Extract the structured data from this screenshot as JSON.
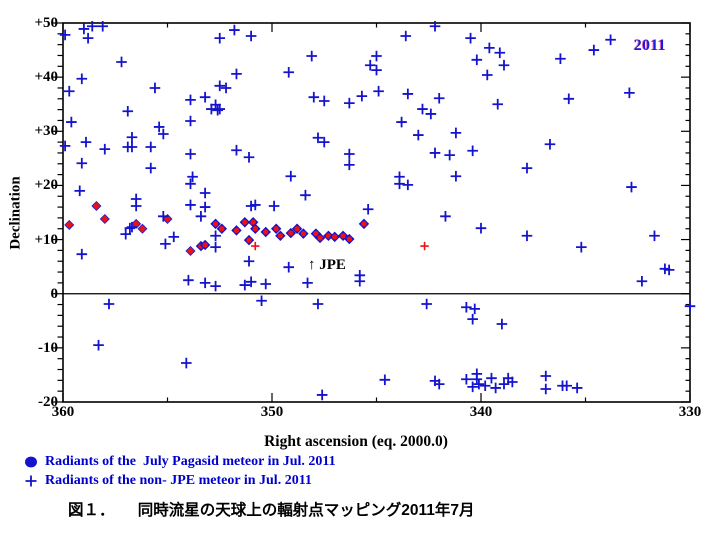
{
  "figure": {
    "year_label": "2011",
    "jpe_annotation": "↑ JPE",
    "caption": "図１．　　同時流星の天球上の輻射点マッピング2011年7月"
  },
  "legend": [
    {
      "marker": "filled-circle",
      "label": "Radiants of the  July Pagasid meteor in Jul. 2011"
    },
    {
      "marker": "plus",
      "label": "Radiants of the non- JPE meteor in Jul. 2011"
    }
  ],
  "colors": {
    "marker_blue": "#1414cc",
    "marker_red": "#ee1111",
    "legend_text": "#0000cc",
    "axis_black": "#000000",
    "year_blue": "#1a1ae0"
  },
  "chart_data": {
    "type": "scatter",
    "xlabel": "Right ascension (eq. 2000.0)",
    "ylabel": "Declination",
    "xlim": [
      360,
      330
    ],
    "ylim": [
      -20,
      50
    ],
    "x_axis_reversed": true,
    "x_major_ticks": [
      360,
      350,
      340,
      330
    ],
    "x_tick_labels": [
      "360",
      "350",
      "340",
      "330"
    ],
    "x_minor_step": 5,
    "y_major_ticks": [
      50,
      40,
      30,
      20,
      10,
      0,
      -10,
      -20
    ],
    "y_tick_labels": [
      "+50",
      "+40",
      "+30",
      "+20",
      "+10",
      "0",
      "-10",
      "-20"
    ],
    "y_minor_step": 2,
    "zero_line_dec": 0,
    "grid": false,
    "legend_position": "below-plot",
    "series": [
      {
        "name": "Radiants of the July Pagasid meteor in Jul. 2011",
        "marker": "diamond-red-core",
        "color": "#1414cc",
        "core_color": "#ee1111",
        "points": [
          [
            353.4,
            8.8
          ],
          [
            353.2,
            9.0
          ],
          [
            352.7,
            12.9
          ],
          [
            352.4,
            12.0
          ],
          [
            351.7,
            11.7
          ],
          [
            351.3,
            13.2
          ],
          [
            350.9,
            13.2
          ],
          [
            350.8,
            12.0
          ],
          [
            350.3,
            11.4
          ],
          [
            351.1,
            9.9
          ],
          [
            349.8,
            12.0
          ],
          [
            349.6,
            10.7
          ],
          [
            349.1,
            11.2
          ],
          [
            348.8,
            12.0
          ],
          [
            348.5,
            11.1
          ],
          [
            347.9,
            11.1
          ],
          [
            347.7,
            10.3
          ],
          [
            347.3,
            10.7
          ],
          [
            347.0,
            10.5
          ],
          [
            346.6,
            10.7
          ],
          [
            346.3,
            10.1
          ],
          [
            345.6,
            12.9
          ]
        ]
      },
      {
        "name": "JPE radiants (red-dominant markers)",
        "marker": "red-diamond",
        "color": "#ee1111",
        "edge_color": "#2222cc",
        "points": [
          [
            359.7,
            12.7
          ],
          [
            358.4,
            16.2
          ],
          [
            358.0,
            13.8
          ],
          [
            356.5,
            12.9
          ],
          [
            356.2,
            12.0
          ],
          [
            355.0,
            13.8
          ],
          [
            353.9,
            7.9
          ]
        ]
      },
      {
        "name": "small red plus marks",
        "marker": "red-plus",
        "color": "#ee1111",
        "points": [
          [
            350.8,
            8.8
          ],
          [
            342.7,
            8.8
          ]
        ]
      },
      {
        "name": "Radiants of the non- JPE meteor in Jul. 2011",
        "marker": "plus",
        "color": "#1414cc",
        "points": [
          [
            359.9,
            47.8
          ],
          [
            359.0,
            48.9
          ],
          [
            358.6,
            49.4
          ],
          [
            358.1,
            49.4
          ],
          [
            358.8,
            47.2
          ],
          [
            352.5,
            47.2
          ],
          [
            351.8,
            48.7
          ],
          [
            351.0,
            47.6
          ],
          [
            357.2,
            42.8
          ],
          [
            359.1,
            39.7
          ],
          [
            359.7,
            37.4
          ],
          [
            351.7,
            40.6
          ],
          [
            355.6,
            38.0
          ],
          [
            352.5,
            38.4
          ],
          [
            352.2,
            38.0
          ],
          [
            353.9,
            35.8
          ],
          [
            353.2,
            36.3
          ],
          [
            352.7,
            34.9
          ],
          [
            352.9,
            34.1
          ],
          [
            352.6,
            33.9
          ],
          [
            352.5,
            34.1
          ],
          [
            356.9,
            33.7
          ],
          [
            359.6,
            31.7
          ],
          [
            353.9,
            31.9
          ],
          [
            355.4,
            30.8
          ],
          [
            355.2,
            29.5
          ],
          [
            356.7,
            28.9
          ],
          [
            359.9,
            27.3
          ],
          [
            358.9,
            28.0
          ],
          [
            358.0,
            26.7
          ],
          [
            356.9,
            27.1
          ],
          [
            356.7,
            27.1
          ],
          [
            355.8,
            27.1
          ],
          [
            353.9,
            25.8
          ],
          [
            351.7,
            26.5
          ],
          [
            351.1,
            25.2
          ],
          [
            359.1,
            24.1
          ],
          [
            355.8,
            23.2
          ],
          [
            353.8,
            21.6
          ],
          [
            353.9,
            20.3
          ],
          [
            353.2,
            18.6
          ],
          [
            359.2,
            19.0
          ],
          [
            356.5,
            17.5
          ],
          [
            356.5,
            16.2
          ],
          [
            353.9,
            16.4
          ],
          [
            353.2,
            16.0
          ],
          [
            351.0,
            16.2
          ],
          [
            350.8,
            16.4
          ],
          [
            343.6,
            47.6
          ],
          [
            342.2,
            49.4
          ],
          [
            340.5,
            47.2
          ],
          [
            340.2,
            43.2
          ],
          [
            348.1,
            43.9
          ],
          [
            345.0,
            43.9
          ],
          [
            345.3,
            42.2
          ],
          [
            345.0,
            41.3
          ],
          [
            349.2,
            40.9
          ],
          [
            344.9,
            37.4
          ],
          [
            348.0,
            36.3
          ],
          [
            347.5,
            35.6
          ],
          [
            345.7,
            36.5
          ],
          [
            346.3,
            35.2
          ],
          [
            343.5,
            36.9
          ],
          [
            342.0,
            36.1
          ],
          [
            342.8,
            34.1
          ],
          [
            342.4,
            33.2
          ],
          [
            343.8,
            31.7
          ],
          [
            343.0,
            29.3
          ],
          [
            341.2,
            29.7
          ],
          [
            347.8,
            28.8
          ],
          [
            347.5,
            28.0
          ],
          [
            346.3,
            25.8
          ],
          [
            346.3,
            23.8
          ],
          [
            342.2,
            26.0
          ],
          [
            341.5,
            25.6
          ],
          [
            340.4,
            26.4
          ],
          [
            349.1,
            21.7
          ],
          [
            343.9,
            21.6
          ],
          [
            343.9,
            20.3
          ],
          [
            343.5,
            20.1
          ],
          [
            341.2,
            21.7
          ],
          [
            348.4,
            18.2
          ],
          [
            345.4,
            15.6
          ],
          [
            349.9,
            16.2
          ],
          [
            339.6,
            45.4
          ],
          [
            339.1,
            44.5
          ],
          [
            338.9,
            42.2
          ],
          [
            339.7,
            40.4
          ],
          [
            339.2,
            35.0
          ],
          [
            336.2,
            43.4
          ],
          [
            335.8,
            36.0
          ],
          [
            334.6,
            45.0
          ],
          [
            333.8,
            46.9
          ],
          [
            332.9,
            37.1
          ],
          [
            336.7,
            27.6
          ],
          [
            337.8,
            23.2
          ],
          [
            332.8,
            19.7
          ],
          [
            359.1,
            7.3
          ],
          [
            357.0,
            11.0
          ],
          [
            356.8,
            12.1
          ],
          [
            356.7,
            12.3
          ],
          [
            355.2,
            14.3
          ],
          [
            354.7,
            10.5
          ],
          [
            355.1,
            9.2
          ],
          [
            353.4,
            14.3
          ],
          [
            352.7,
            10.7
          ],
          [
            352.7,
            8.6
          ],
          [
            351.1,
            6.0
          ],
          [
            354.0,
            2.5
          ],
          [
            353.2,
            2.0
          ],
          [
            352.7,
            1.4
          ],
          [
            351.3,
            1.6
          ],
          [
            351.0,
            2.2
          ],
          [
            350.3,
            1.8
          ],
          [
            350.5,
            -1.3
          ],
          [
            357.8,
            -1.9
          ],
          [
            358.3,
            -9.5
          ],
          [
            354.1,
            -12.8
          ],
          [
            349.2,
            4.9
          ],
          [
            348.3,
            2.0
          ],
          [
            345.8,
            3.4
          ],
          [
            345.8,
            2.3
          ],
          [
            347.8,
            -1.9
          ],
          [
            342.6,
            -1.9
          ],
          [
            341.7,
            14.3
          ],
          [
            340.0,
            12.1
          ],
          [
            340.7,
            -2.5
          ],
          [
            340.3,
            -2.8
          ],
          [
            340.4,
            -4.7
          ],
          [
            344.6,
            -15.9
          ],
          [
            342.2,
            -16.1
          ],
          [
            342.0,
            -16.7
          ],
          [
            340.7,
            -15.8
          ],
          [
            340.2,
            -14.8
          ],
          [
            340.2,
            -15.8
          ],
          [
            340.1,
            -16.7
          ],
          [
            340.4,
            -17.2
          ],
          [
            347.6,
            -18.7
          ],
          [
            337.8,
            10.7
          ],
          [
            335.2,
            8.6
          ],
          [
            331.7,
            10.7
          ],
          [
            331.2,
            4.6
          ],
          [
            331.0,
            4.4
          ],
          [
            332.3,
            2.3
          ],
          [
            330.0,
            -2.3
          ],
          [
            339.0,
            -5.6
          ],
          [
            339.8,
            -17.0
          ],
          [
            339.5,
            -15.6
          ],
          [
            339.3,
            -17.4
          ],
          [
            338.9,
            -16.7
          ],
          [
            338.7,
            -15.6
          ],
          [
            338.5,
            -16.3
          ],
          [
            336.9,
            -15.2
          ],
          [
            336.9,
            -17.6
          ],
          [
            336.1,
            -17.0
          ],
          [
            335.9,
            -17.0
          ],
          [
            335.4,
            -17.4
          ]
        ]
      }
    ]
  }
}
